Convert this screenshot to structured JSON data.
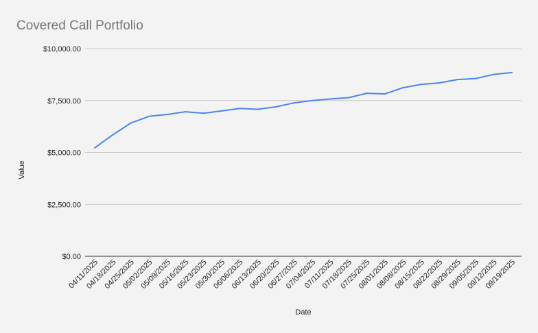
{
  "chart_data": {
    "type": "line",
    "title": "Covered Call Portfolio",
    "xlabel": "Date",
    "ylabel": "Value",
    "ylim": [
      0,
      10000
    ],
    "y_ticks": [
      0,
      2500,
      5000,
      7500,
      10000
    ],
    "y_tick_labels": [
      "$0.00",
      "$2,500.00",
      "$5,000.00",
      "$7,500.00",
      "$10,000.00"
    ],
    "grid": true,
    "legend": "none",
    "x": [
      "04/11/2025",
      "04/18/2025",
      "04/25/2025",
      "05/02/2025",
      "05/09/2025",
      "05/16/2025",
      "05/23/2025",
      "05/30/2025",
      "06/06/2025",
      "06/13/2025",
      "06/20/2025",
      "06/27/2025",
      "07/04/2025",
      "07/11/2025",
      "07/18/2025",
      "07/25/2025",
      "08/01/2025",
      "08/08/2025",
      "08/15/2025",
      "08/22/2025",
      "08/29/2025",
      "09/05/2025",
      "09/12/2025",
      "09/19/2025"
    ],
    "series": [
      {
        "color": "#4a86e8",
        "values": [
          5220,
          5850,
          6420,
          6740,
          6830,
          6960,
          6890,
          7000,
          7120,
          7080,
          7200,
          7390,
          7500,
          7580,
          7640,
          7850,
          7820,
          8120,
          8280,
          8350,
          8510,
          8560,
          8760,
          8850
        ]
      }
    ]
  }
}
